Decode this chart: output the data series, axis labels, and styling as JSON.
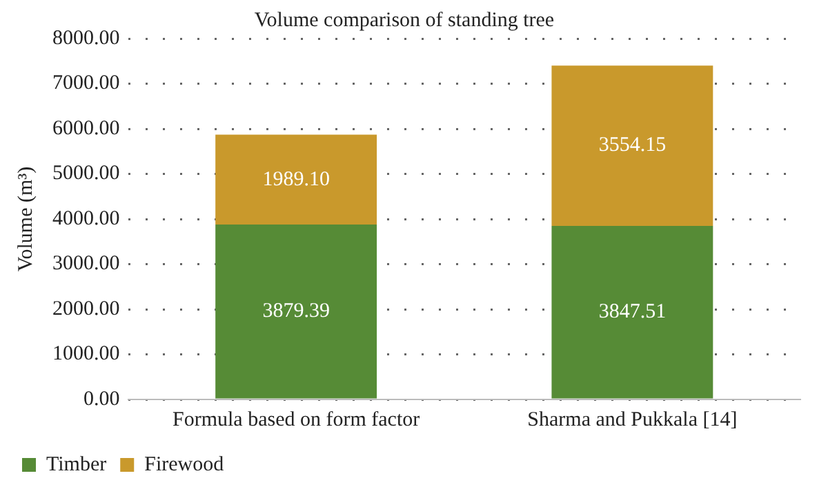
{
  "chart_data": {
    "type": "bar",
    "title": "Volume comparison of standing tree",
    "ylabel": "Volume (m³)",
    "stacked": true,
    "categories": [
      "Formula based on form factor",
      "Sharma and Pukkala [14]"
    ],
    "series": [
      {
        "name": "Timber",
        "color": "#568b36",
        "values": [
          3879.39,
          3847.51
        ],
        "value_labels": [
          "3879.39",
          "3847.51"
        ]
      },
      {
        "name": "Firewood",
        "color": "#c9992c",
        "values": [
          1989.1,
          3554.15
        ],
        "value_labels": [
          "1989.10",
          "3554.15"
        ]
      }
    ],
    "ylim": [
      0,
      8000
    ],
    "yticks": [
      {
        "value": 0,
        "label": "0.00"
      },
      {
        "value": 1000,
        "label": "1000.00"
      },
      {
        "value": 2000,
        "label": "2000.00"
      },
      {
        "value": 3000,
        "label": "3000.00"
      },
      {
        "value": 4000,
        "label": "4000.00"
      },
      {
        "value": 5000,
        "label": "5000.00"
      },
      {
        "value": 6000,
        "label": "6000.00"
      },
      {
        "value": 7000,
        "label": "7000.00"
      },
      {
        "value": 8000,
        "label": "8000.00"
      }
    ],
    "grid": "y",
    "legend": "bottom left"
  }
}
